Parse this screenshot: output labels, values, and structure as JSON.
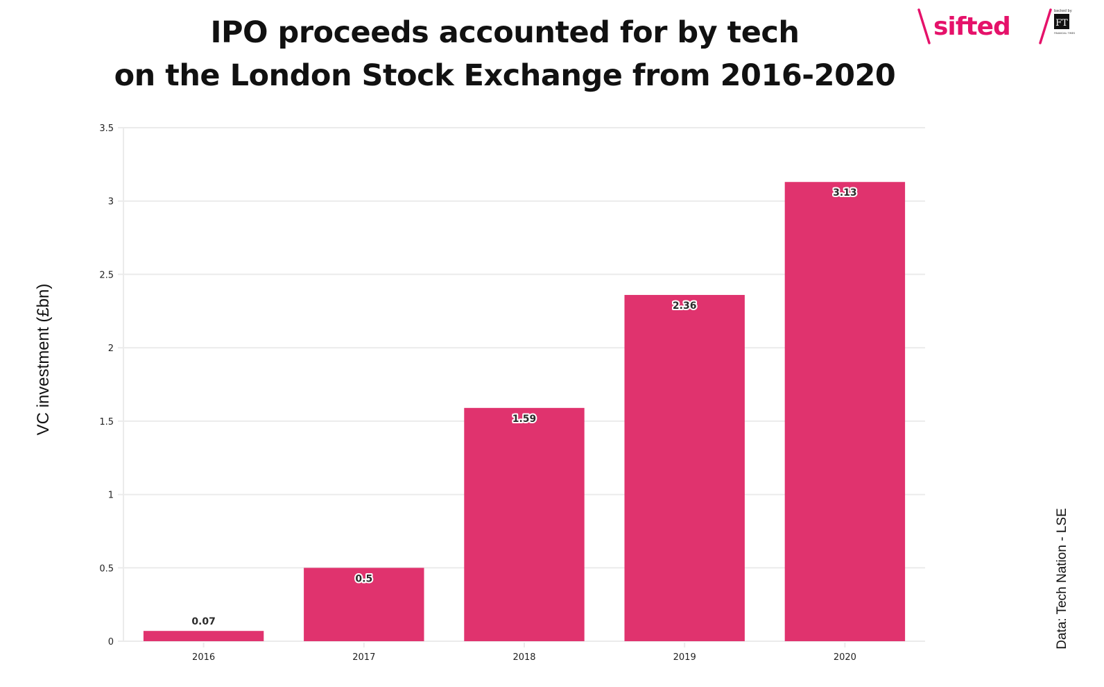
{
  "header": {
    "title_line1": "IPO proceeds accounted for by tech",
    "title_line2": "on the London Stock Exchange from 2016-2020"
  },
  "logo": {
    "brand": "sifted",
    "backed_by": "backed by",
    "ft_mark": "FT",
    "ft_name": "FINANCIAL TIMES",
    "brand_color": "#e5126a"
  },
  "source": "Data: Tech Nation - LSE",
  "colors": {
    "bar": "#e0336e",
    "grid": "#ebebeb",
    "text": "#222222"
  },
  "chart_data": {
    "type": "bar",
    "title": "IPO proceeds accounted for by tech on the London Stock Exchange from 2016-2020",
    "xlabel": "",
    "ylabel": "VC investment (£bn)",
    "categories": [
      "2016",
      "2017",
      "2018",
      "2019",
      "2020"
    ],
    "values": [
      0.07,
      0.5,
      1.59,
      2.36,
      3.13
    ],
    "data_labels": [
      "0.07",
      "0.5",
      "1.59",
      "2.36",
      "3.13"
    ],
    "ylim": [
      0,
      3.5
    ],
    "yticks": [
      0,
      0.5,
      1,
      1.5,
      2,
      2.5,
      3,
      3.5
    ],
    "ytick_labels": [
      "0",
      "0.5",
      "1",
      "1.5",
      "2",
      "2.5",
      "3",
      "3.5"
    ],
    "grid": true,
    "legend": "none",
    "annotation": "Data: Tech Nation - LSE"
  }
}
